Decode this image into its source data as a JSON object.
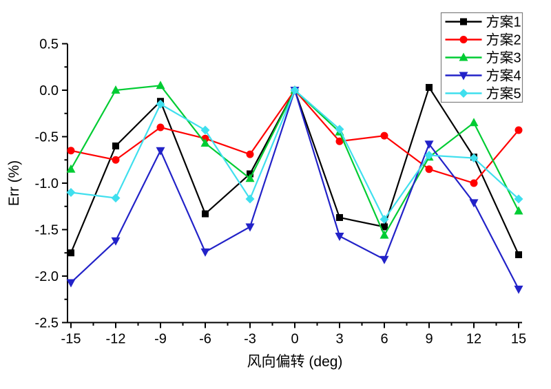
{
  "figure": {
    "background": "#ffffff",
    "axis_color": "#000000"
  },
  "chart_data": {
    "type": "line",
    "title": "",
    "xlabel": "风向偏转 (deg)",
    "ylabel": "Err (%)",
    "grid": false,
    "legend_position": "top-right",
    "xlim": [
      -15.25,
      15.25
    ],
    "ylim": [
      -2.5,
      0.5
    ],
    "x_ticks": [
      -15,
      -12,
      -9,
      -6,
      -3,
      0,
      3,
      6,
      9,
      12,
      15
    ],
    "x_tick_labels": [
      "-15",
      "-12",
      "-9",
      "-6",
      "-3",
      "0",
      "3",
      "6",
      "9",
      "12",
      "15"
    ],
    "y_ticks": [
      0.5,
      0.0,
      -0.5,
      -1.0,
      -1.5,
      -2.0,
      -2.5
    ],
    "y_tick_labels": [
      "0.5",
      "0.0",
      "-0.5",
      "-1.0",
      "-1.5",
      "-2.0",
      "-2.5"
    ],
    "x_minor_step": 1.5,
    "y_minor_step": 0.25,
    "x": [
      -15,
      -12,
      -9,
      -6,
      -3,
      0,
      3,
      6,
      9,
      12,
      15
    ],
    "series": [
      {
        "name": "方案1",
        "color": "#000000",
        "marker": "square",
        "values": [
          -1.75,
          -0.6,
          -0.12,
          -1.33,
          -0.9,
          0.0,
          -1.37,
          -1.47,
          0.03,
          -0.72,
          -1.77
        ]
      },
      {
        "name": "方案2",
        "color": "#FF0000",
        "marker": "circle",
        "values": [
          -0.65,
          -0.75,
          -0.4,
          -0.52,
          -0.69,
          0.0,
          -0.55,
          -0.49,
          -0.85,
          -1.0,
          -0.43
        ]
      },
      {
        "name": "方案3",
        "color": "#00CC33",
        "marker": "triangle-up",
        "values": [
          -0.85,
          0.0,
          0.05,
          -0.57,
          -0.95,
          0.0,
          -0.45,
          -1.56,
          -0.72,
          -0.35,
          -1.3
        ]
      },
      {
        "name": "方案4",
        "color": "#2222C8",
        "marker": "triangle-down",
        "values": [
          -2.07,
          -1.62,
          -0.65,
          -1.74,
          -1.47,
          0.0,
          -1.57,
          -1.82,
          -0.58,
          -1.21,
          -2.14
        ]
      },
      {
        "name": "方案5",
        "color": "#3FDFEE",
        "marker": "diamond",
        "values": [
          -1.1,
          -1.16,
          -0.15,
          -0.43,
          -1.17,
          0.0,
          -0.42,
          -1.39,
          -0.7,
          -0.73,
          -1.17
        ]
      }
    ]
  }
}
